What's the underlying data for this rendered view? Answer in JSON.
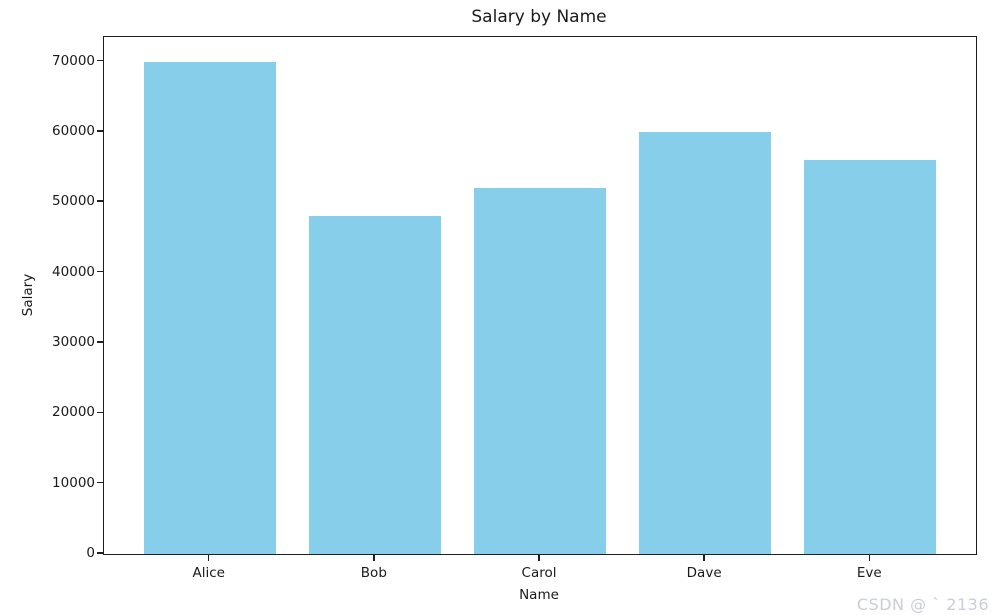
{
  "chart_data": {
    "type": "bar",
    "title": "Salary by Name",
    "xlabel": "Name",
    "ylabel": "Salary",
    "categories": [
      "Alice",
      "Bob",
      "Carol",
      "Dave",
      "Eve"
    ],
    "values": [
      70000,
      48000,
      52000,
      60000,
      56000
    ],
    "yticks": [
      0,
      10000,
      20000,
      30000,
      40000,
      50000,
      60000,
      70000
    ],
    "ylim": [
      0,
      73500
    ],
    "bar_color": "#87CEEB",
    "grid": false,
    "legend_position": "none"
  },
  "watermark": {
    "text": "CSDN @ ` 2136",
    "color": "#c9cdd5"
  }
}
